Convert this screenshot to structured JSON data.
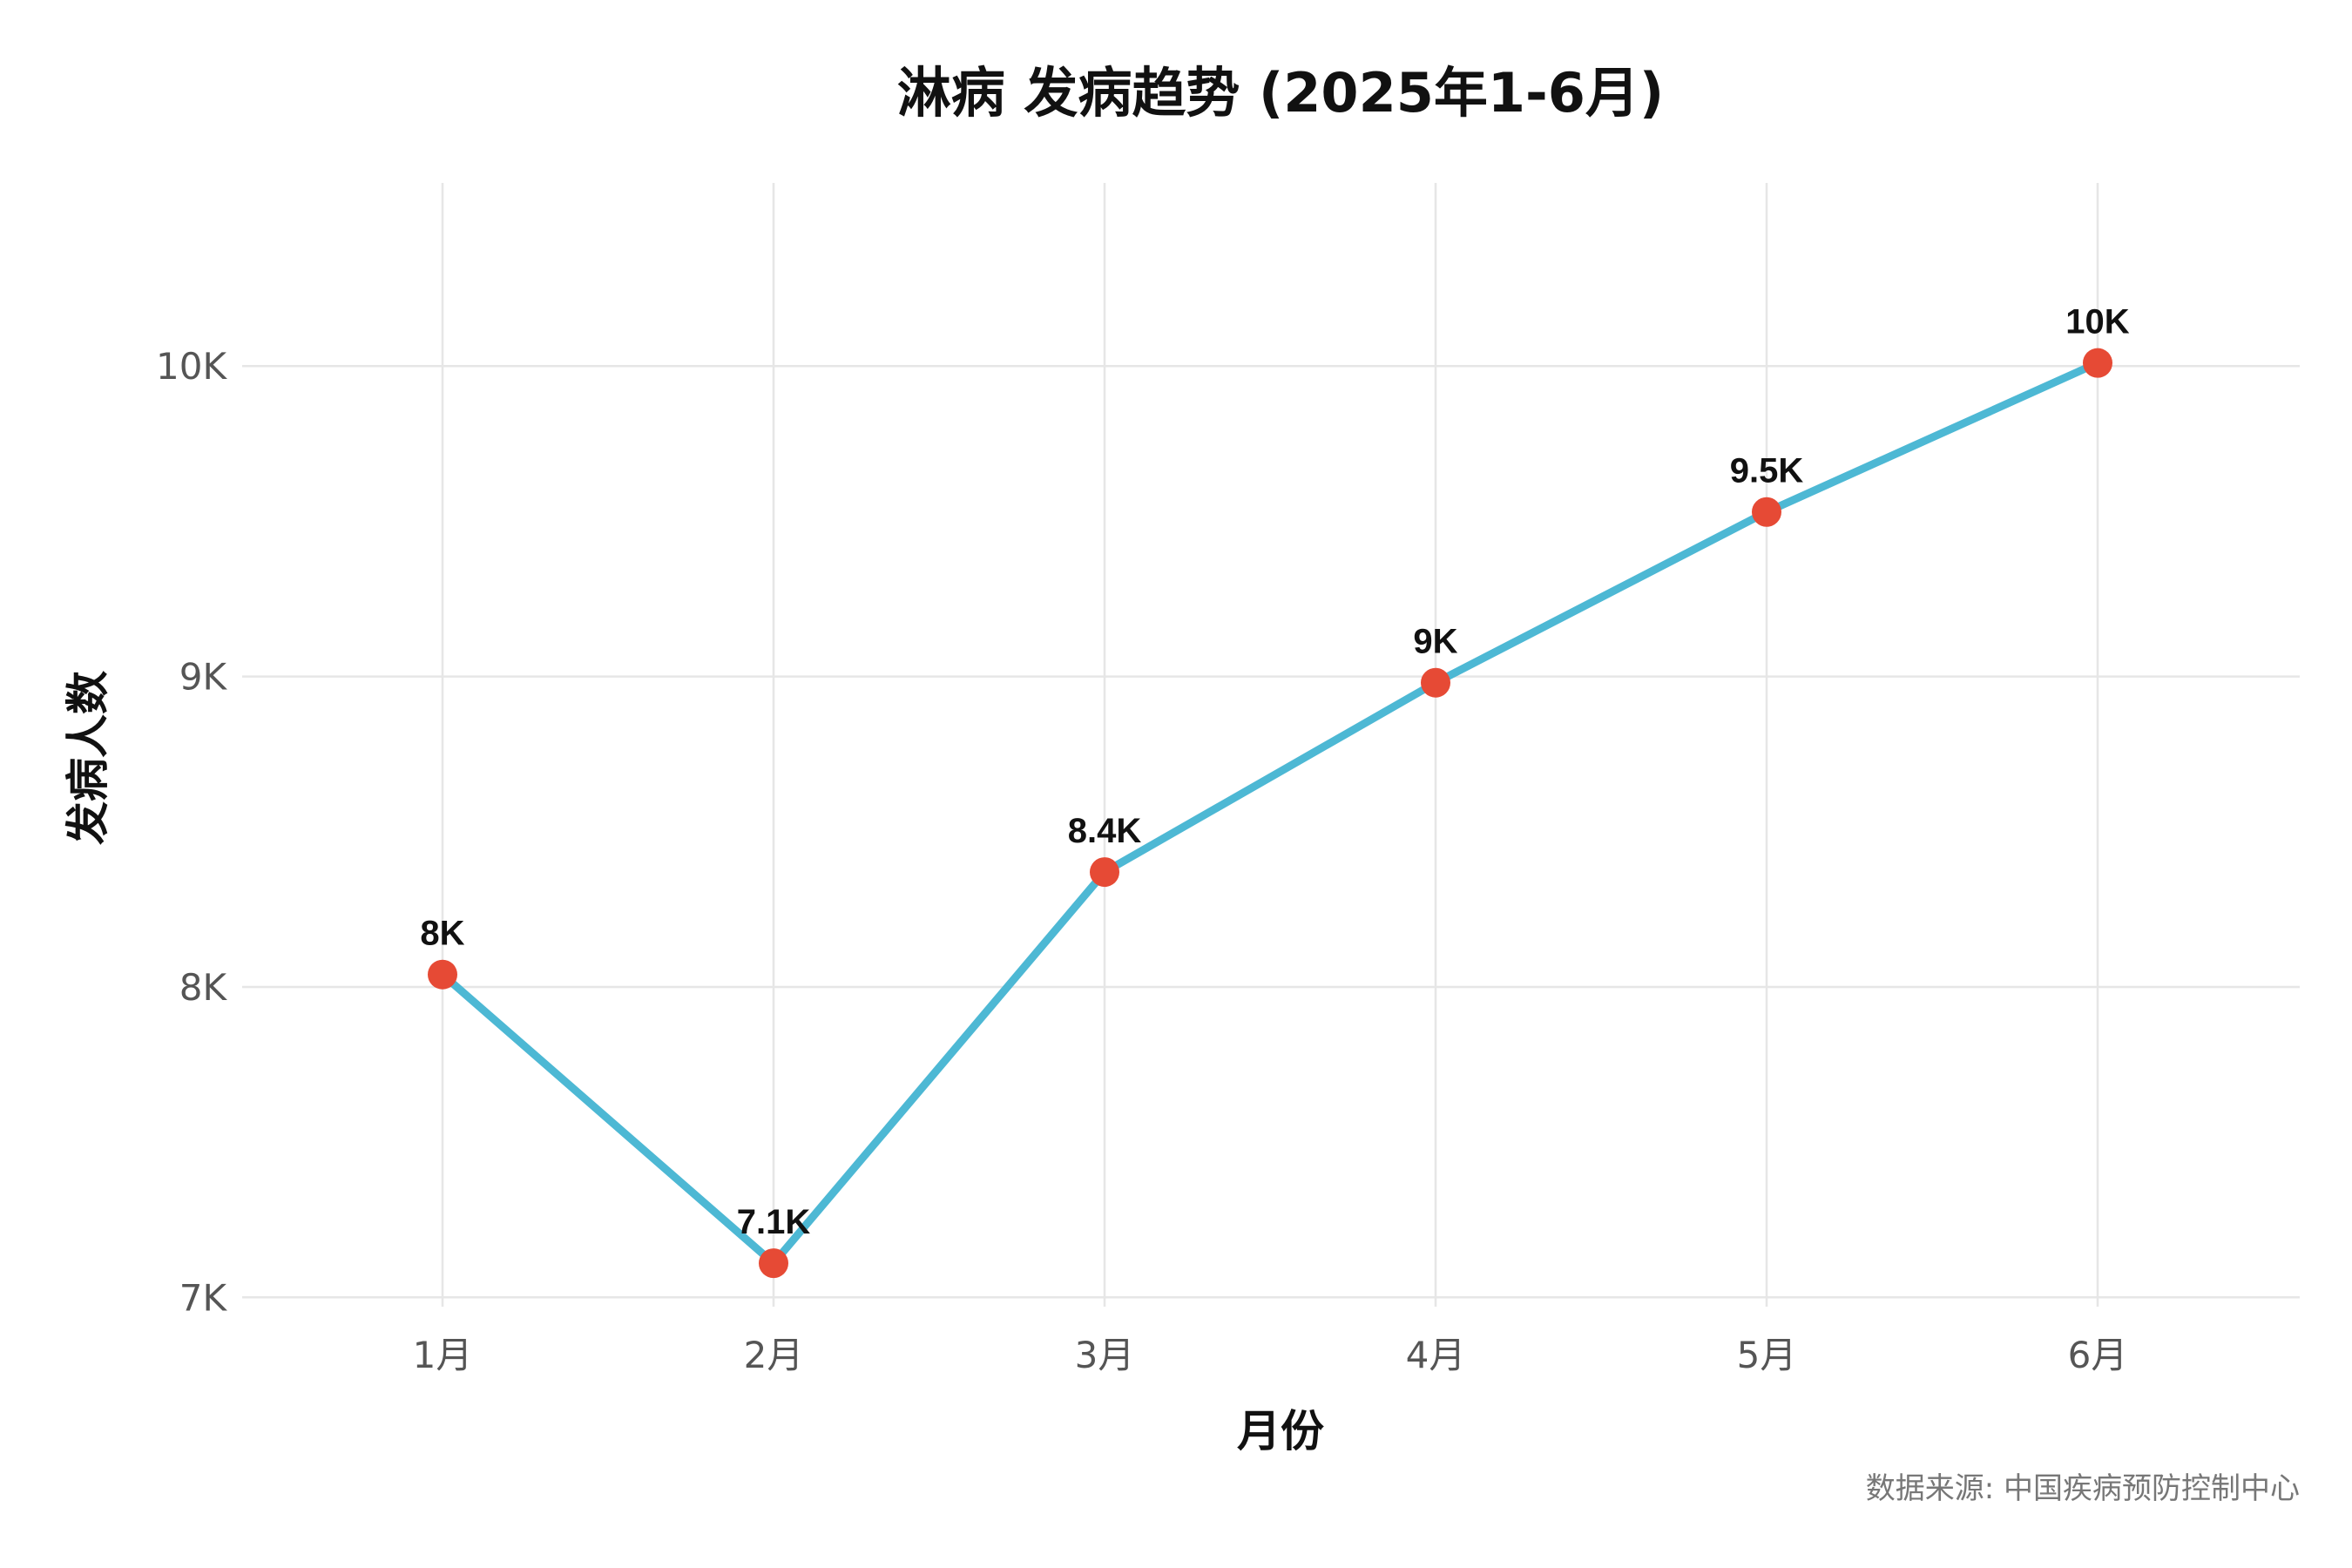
{
  "chart_data": {
    "type": "line",
    "title": "淋病 发病趋势 (2025年1-6月)",
    "xlabel": "月份",
    "ylabel": "发病人数",
    "categories": [
      "1月",
      "2月",
      "3月",
      "4月",
      "5月",
      "6月"
    ],
    "series": [
      {
        "values": [
          8040,
          7110,
          8370,
          8980,
          9530,
          10010
        ],
        "data_labels": [
          "8K",
          "7.1K",
          "8.4K",
          "9K",
          "9.5K",
          "10K"
        ]
      }
    ],
    "ylim": [
      6970,
      10590
    ],
    "yticks": [
      7000,
      8000,
      9000,
      10000
    ],
    "ytick_labels": [
      "7K",
      "8K",
      "9K",
      "10K"
    ],
    "grid": true,
    "legend": "none",
    "line_color": "#4db8d4",
    "marker_color": "#e64a35",
    "source_note": "数据来源: 中国疾病预防控制中心"
  }
}
